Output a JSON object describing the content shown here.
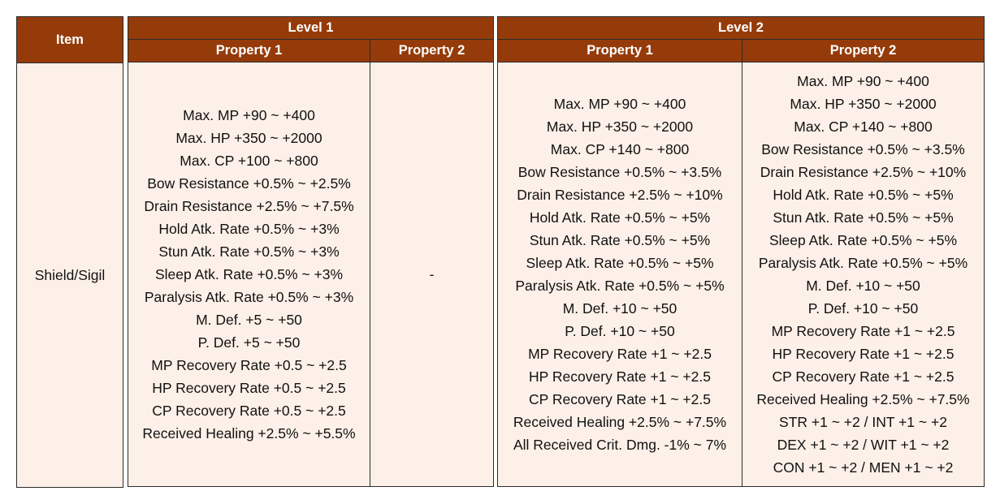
{
  "headers": {
    "item": "Item",
    "level1": "Level 1",
    "level2": "Level 2",
    "property1": "Property 1",
    "property2": "Property 2"
  },
  "row": {
    "item": "Shield/Sigil",
    "level1_property1": [
      "Max. MP +90 ~ +400",
      "Max. HP +350 ~ +2000",
      "Max. CP +100 ~ +800",
      "Bow Resistance +0.5% ~ +2.5%",
      "Drain Resistance +2.5% ~ +7.5%",
      "Hold Atk. Rate +0.5% ~ +3%",
      "Stun Atk. Rate +0.5% ~ +3%",
      "Sleep Atk. Rate +0.5% ~ +3%",
      "Paralysis Atk. Rate +0.5% ~ +3%",
      "M. Def. +5 ~ +50",
      "P. Def. +5 ~ +50",
      "MP Recovery Rate +0.5 ~ +2.5",
      "HP Recovery Rate +0.5 ~ +2.5",
      "CP Recovery Rate +0.5 ~ +2.5",
      "Received Healing +2.5% ~ +5.5%"
    ],
    "level1_property2": "-",
    "level2_property1": [
      "Max. MP +90 ~ +400",
      "Max. HP +350 ~ +2000",
      "Max. CP +140 ~ +800",
      "Bow Resistance +0.5% ~ +3.5%",
      "Drain Resistance +2.5% ~ +10%",
      "Hold Atk. Rate +0.5% ~ +5%",
      "Stun Atk. Rate +0.5% ~ +5%",
      "Sleep Atk. Rate +0.5% ~ +5%",
      "Paralysis Atk. Rate +0.5% ~ +5%",
      "M. Def. +10 ~ +50",
      "P. Def. +10 ~ +50",
      "MP Recovery Rate +1 ~ +2.5",
      "HP Recovery Rate +1 ~ +2.5",
      "CP Recovery Rate +1 ~ +2.5",
      "Received Healing +2.5% ~ +7.5%",
      "All Received Crit. Dmg. -1% ~ 7%"
    ],
    "level2_property2": [
      "Max. MP +90 ~ +400",
      "Max. HP +350 ~ +2000",
      "Max. CP +140 ~ +800",
      "Bow Resistance +0.5% ~ +3.5%",
      "Drain Resistance +2.5% ~ +10%",
      "Hold Atk. Rate +0.5% ~ +5%",
      "Stun Atk. Rate +0.5% ~ +5%",
      "Sleep Atk. Rate +0.5% ~ +5%",
      "Paralysis Atk. Rate +0.5% ~ +5%",
      "M. Def. +10 ~ +50",
      "P. Def. +10 ~ +50",
      "MP Recovery Rate +1 ~ +2.5",
      "HP Recovery Rate +1 ~ +2.5",
      "CP Recovery Rate +1 ~ +2.5",
      "Received Healing +2.5% ~ +7.5%",
      "STR +1 ~ +2 / INT +1 ~ +2",
      "DEX +1 ~ +2 / WIT +1 ~ +2",
      "CON +1 ~ +2 / MEN +1 ~ +2"
    ]
  },
  "colors": {
    "header_bg": "#953b0a",
    "header_text": "#ffffff",
    "cell_bg": "#fdf0e8",
    "border": "#2b2b2b"
  }
}
